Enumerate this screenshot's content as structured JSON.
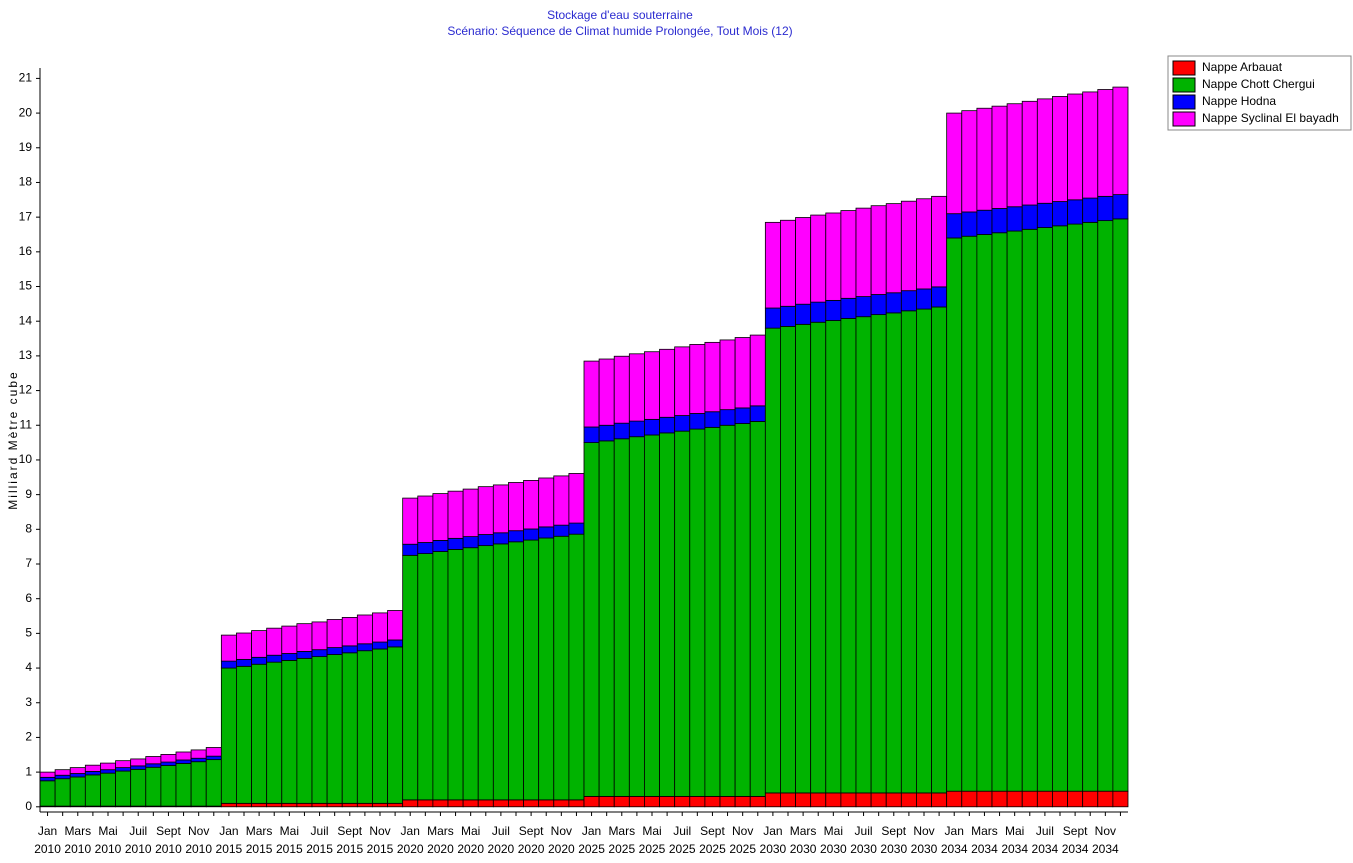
{
  "chart_data": {
    "type": "stacked-bar",
    "title": "Stockage d'eau souterraine",
    "subtitle": "Scénario: Séquence de Climat humide Prolongée,  Tout Mois (12)",
    "y_label": "Milliard Mètre cube",
    "categories": [
      "Jan 2010",
      null,
      "Mars 2010",
      null,
      "Mai 2010",
      null,
      "Juil 2010",
      null,
      "Sept 2010",
      null,
      "Nov 2010",
      null,
      "Jan 2015",
      null,
      "Mars 2015",
      null,
      "Mai 2015",
      null,
      "Juil 2015",
      null,
      "Sept 2015",
      null,
      "Nov 2015",
      null,
      "Jan 2020",
      null,
      "Mars 2020",
      null,
      "Mai 2020",
      null,
      "Juil 2020",
      null,
      "Sept 2020",
      null,
      "Nov 2020",
      null,
      "Jan 2025",
      null,
      "Mars 2025",
      null,
      "Mai 2025",
      null,
      "Juil 2025",
      null,
      "Sept 2025",
      null,
      "Nov 2025",
      null,
      "Jan 2030",
      null,
      "Mars 2030",
      null,
      "Mai 2030",
      null,
      "Juil 2030",
      null,
      "Sept 2030",
      null,
      "Nov 2030",
      null,
      "Jan 2034",
      null,
      "Mars 2034",
      null,
      "Mai 2034",
      null,
      "Juil 2034",
      null,
      "Sept 2034",
      null,
      "Nov 2034",
      null
    ],
    "series": [
      {
        "name": "Nappe Arbauat",
        "color": "#ff0000",
        "values": [
          0.02,
          0.02,
          0.02,
          0.02,
          0.02,
          0.02,
          0.02,
          0.02,
          0.02,
          0.02,
          0.02,
          0.02,
          0.1,
          0.1,
          0.1,
          0.1,
          0.1,
          0.1,
          0.1,
          0.1,
          0.1,
          0.1,
          0.1,
          0.1,
          0.2,
          0.2,
          0.2,
          0.2,
          0.2,
          0.2,
          0.2,
          0.2,
          0.2,
          0.2,
          0.2,
          0.2,
          0.3,
          0.3,
          0.3,
          0.3,
          0.3,
          0.3,
          0.3,
          0.3,
          0.3,
          0.3,
          0.3,
          0.3,
          0.4,
          0.4,
          0.4,
          0.4,
          0.4,
          0.4,
          0.4,
          0.4,
          0.4,
          0.4,
          0.4,
          0.4,
          0.45,
          0.45,
          0.45,
          0.45,
          0.45,
          0.45,
          0.45,
          0.45,
          0.45,
          0.45,
          0.45,
          0.45
        ]
      },
      {
        "name": "Nappe Chott Chergui",
        "color": "#00b300",
        "values": [
          0.73,
          0.79,
          0.84,
          0.9,
          0.95,
          1.01,
          1.06,
          1.12,
          1.17,
          1.23,
          1.28,
          1.34,
          3.9,
          3.95,
          4.01,
          4.07,
          4.12,
          4.18,
          4.23,
          4.29,
          4.34,
          4.4,
          4.45,
          4.51,
          7.05,
          7.1,
          7.16,
          7.22,
          7.27,
          7.33,
          7.38,
          7.44,
          7.49,
          7.55,
          7.6,
          7.66,
          10.2,
          10.25,
          10.31,
          10.37,
          10.42,
          10.48,
          10.53,
          10.59,
          10.64,
          10.7,
          10.75,
          10.81,
          13.4,
          13.45,
          13.51,
          13.57,
          13.62,
          13.68,
          13.73,
          13.79,
          13.84,
          13.9,
          13.95,
          14.01,
          15.95,
          16.0,
          16.05,
          16.1,
          16.15,
          16.2,
          16.25,
          16.3,
          16.35,
          16.4,
          16.45,
          16.5
        ]
      },
      {
        "name": "Nappe Hodna",
        "color": "#0000ff",
        "values": [
          0.1,
          0.1,
          0.1,
          0.1,
          0.1,
          0.1,
          0.1,
          0.1,
          0.1,
          0.1,
          0.1,
          0.1,
          0.2,
          0.2,
          0.2,
          0.2,
          0.2,
          0.2,
          0.2,
          0.2,
          0.2,
          0.2,
          0.2,
          0.2,
          0.32,
          0.32,
          0.32,
          0.32,
          0.32,
          0.32,
          0.32,
          0.32,
          0.32,
          0.32,
          0.32,
          0.32,
          0.45,
          0.45,
          0.45,
          0.45,
          0.45,
          0.45,
          0.45,
          0.45,
          0.45,
          0.45,
          0.45,
          0.45,
          0.58,
          0.58,
          0.58,
          0.58,
          0.58,
          0.58,
          0.58,
          0.58,
          0.58,
          0.58,
          0.58,
          0.58,
          0.7,
          0.7,
          0.7,
          0.7,
          0.7,
          0.7,
          0.7,
          0.7,
          0.7,
          0.7,
          0.7,
          0.7
        ]
      },
      {
        "name": "Nappe Syclinal El bayadh",
        "color": "#ff00ff",
        "values": [
          0.15,
          0.16,
          0.17,
          0.18,
          0.19,
          0.2,
          0.2,
          0.21,
          0.22,
          0.23,
          0.24,
          0.25,
          0.75,
          0.76,
          0.77,
          0.78,
          0.79,
          0.8,
          0.8,
          0.81,
          0.82,
          0.83,
          0.84,
          0.85,
          1.33,
          1.34,
          1.35,
          1.36,
          1.37,
          1.38,
          1.38,
          1.39,
          1.4,
          1.41,
          1.42,
          1.43,
          1.9,
          1.91,
          1.93,
          1.94,
          1.95,
          1.96,
          1.98,
          1.99,
          2.0,
          2.01,
          2.03,
          2.04,
          2.47,
          2.48,
          2.5,
          2.51,
          2.52,
          2.53,
          2.55,
          2.56,
          2.57,
          2.58,
          2.6,
          2.61,
          2.9,
          2.92,
          2.94,
          2.95,
          2.97,
          2.99,
          3.01,
          3.03,
          3.05,
          3.06,
          3.08,
          3.1
        ]
      }
    ],
    "ylim": [
      -0.15,
      21.3
    ],
    "yticks": [
      0,
      1,
      2,
      3,
      4,
      5,
      6,
      7,
      8,
      9,
      10,
      11,
      12,
      13,
      14,
      15,
      16,
      17,
      18,
      19,
      20,
      21
    ]
  }
}
